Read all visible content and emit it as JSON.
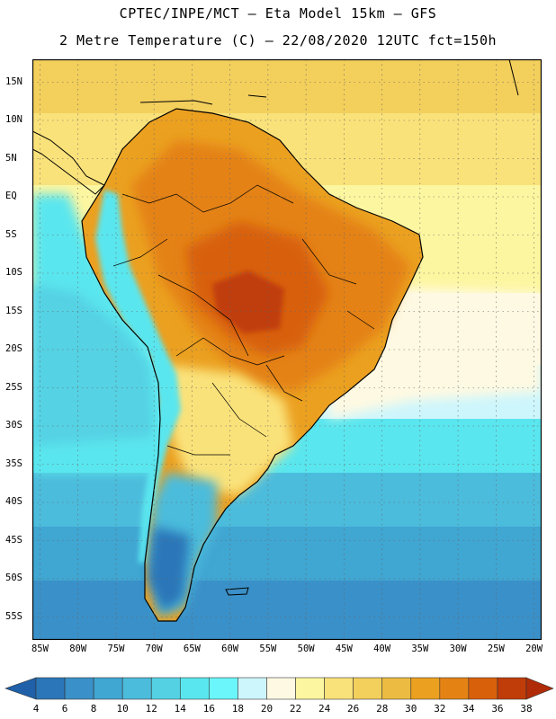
{
  "header": {
    "line1": "CPTEC/INPE/MCT –  Eta Model 15km – GFS",
    "line2": "2 Metre Temperature (C) – 22/08/2020 12UTC fct=150h"
  },
  "axes": {
    "lat_labels": [
      "15N",
      "10N",
      "5N",
      "EQ",
      "5S",
      "10S",
      "15S",
      "20S",
      "25S",
      "30S",
      "35S",
      "40S",
      "45S",
      "50S",
      "55S"
    ],
    "lat_values": [
      15,
      10,
      5,
      0,
      -5,
      -10,
      -15,
      -20,
      -25,
      -30,
      -35,
      -40,
      -45,
      -50,
      -55
    ],
    "lon_labels": [
      "85W",
      "80W",
      "75W",
      "70W",
      "65W",
      "60W",
      "55W",
      "50W",
      "45W",
      "40W",
      "35W",
      "30W",
      "25W",
      "20W"
    ],
    "lon_values": [
      -85,
      -80,
      -75,
      -70,
      -65,
      -60,
      -55,
      -50,
      -45,
      -40,
      -35,
      -30,
      -25,
      -20
    ],
    "lat_range": [
      -58,
      18
    ],
    "lon_range": [
      -86,
      -19
    ]
  },
  "colorbar": {
    "labels": [
      "4",
      "6",
      "8",
      "10",
      "12",
      "14",
      "16",
      "18",
      "20",
      "22",
      "24",
      "26",
      "28",
      "30",
      "32",
      "34",
      "36",
      "38"
    ],
    "colors": [
      "#1f60a8",
      "#2a76b8",
      "#3a90c8",
      "#40a6d2",
      "#4cbcdc",
      "#54d2e4",
      "#5ae6ee",
      "#6af6fb",
      "#cdf6fc",
      "#fef9e2",
      "#fdf6a0",
      "#fae27a",
      "#f3cf5c",
      "#ecbc42",
      "#eba020",
      "#e48214",
      "#d8600a",
      "#c03c08",
      "#b02c08"
    ]
  },
  "map_colors": {
    "ocean_north": "#fdf6a0",
    "ocean_mid": "#fae27a",
    "coast_warm": "#f3cf5c",
    "land_hot": "#d8600a",
    "land_hottest": "#c03c08",
    "land_warm": "#eba020",
    "land_mild": "#ecbc42",
    "ocean_cool": "#cdf6fc",
    "ocean_cyan": "#5ae6ee",
    "ocean_blue": "#4cbcdc",
    "ocean_deep": "#2a76b8",
    "andes": "#40a6d2",
    "border": "#000000",
    "grid": "#666666"
  }
}
